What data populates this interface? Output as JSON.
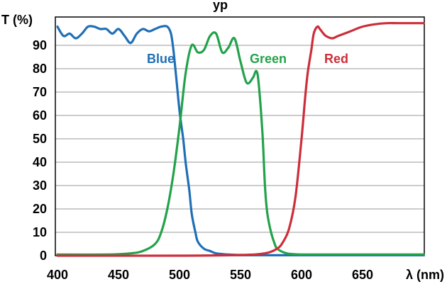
{
  "chart_data": {
    "type": "line",
    "title_fragment": "yp",
    "xlabel": "λ (nm)",
    "ylabel": "T (%)",
    "xlim": [
      400,
      700
    ],
    "ylim": [
      0,
      100
    ],
    "x_ticks": [
      400,
      450,
      500,
      550,
      600,
      650
    ],
    "y_ticks": [
      0,
      10,
      20,
      30,
      40,
      50,
      60,
      70,
      80,
      90
    ],
    "grid": true,
    "series": [
      {
        "name": "Blue",
        "color": "#1f6fb6",
        "x": [
          400,
          405,
          410,
          415,
          420,
          425,
          430,
          435,
          440,
          445,
          450,
          455,
          460,
          465,
          470,
          475,
          480,
          485,
          490,
          493,
          495,
          497,
          500,
          503,
          505,
          508,
          510,
          513,
          515,
          520,
          525,
          530,
          540,
          550,
          560,
          600,
          650,
          700
        ],
        "y": [
          98,
          94,
          95,
          93,
          95,
          98,
          98,
          97,
          97,
          95,
          97,
          94,
          91,
          95,
          97,
          96,
          97,
          98,
          98,
          95,
          88,
          78,
          62,
          50,
          40,
          28,
          18,
          10,
          6,
          3,
          2,
          1,
          0.5,
          0.3,
          0.2,
          0.2,
          0.2,
          0.2
        ]
      },
      {
        "name": "Green",
        "color": "#22a24a",
        "x": [
          400,
          440,
          460,
          470,
          480,
          485,
          490,
          495,
          500,
          505,
          510,
          515,
          520,
          525,
          530,
          535,
          540,
          545,
          550,
          555,
          560,
          563,
          565,
          568,
          570,
          572,
          575,
          578,
          580,
          585,
          590,
          600,
          620,
          650,
          700
        ],
        "y": [
          0.5,
          0.5,
          1,
          2,
          5,
          10,
          20,
          35,
          55,
          78,
          90,
          87,
          88,
          94,
          95,
          87,
          89,
          93,
          83,
          74,
          76,
          79,
          73,
          52,
          30,
          18,
          10,
          5,
          3,
          1.5,
          0.8,
          0.5,
          0.5,
          0.5,
          0.5
        ]
      },
      {
        "name": "Red",
        "color": "#cc2e3a",
        "x": [
          400,
          500,
          550,
          570,
          580,
          585,
          590,
          595,
          600,
          603,
          605,
          608,
          610,
          613,
          615,
          618,
          620,
          625,
          630,
          640,
          650,
          660,
          670,
          680,
          700
        ],
        "y": [
          0,
          0,
          0.3,
          1,
          3,
          6,
          12,
          25,
          50,
          68,
          78,
          88,
          95,
          98,
          97,
          95,
          94,
          93,
          94,
          96,
          98,
          99,
          99.5,
          99.5,
          99.5
        ]
      }
    ]
  }
}
